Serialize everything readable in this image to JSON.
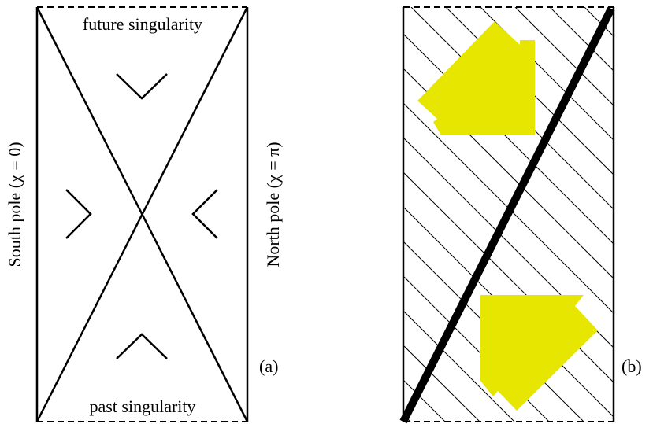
{
  "panel_a": {
    "top_label": "future singularity",
    "bottom_label": "past singularity",
    "left_label": "South pole  (χ = 0)",
    "right_label": "North pole  (χ = π)",
    "tag": "(a)"
  },
  "panel_b": {
    "tag": "(b)",
    "arrow_color": "#e6e600"
  }
}
